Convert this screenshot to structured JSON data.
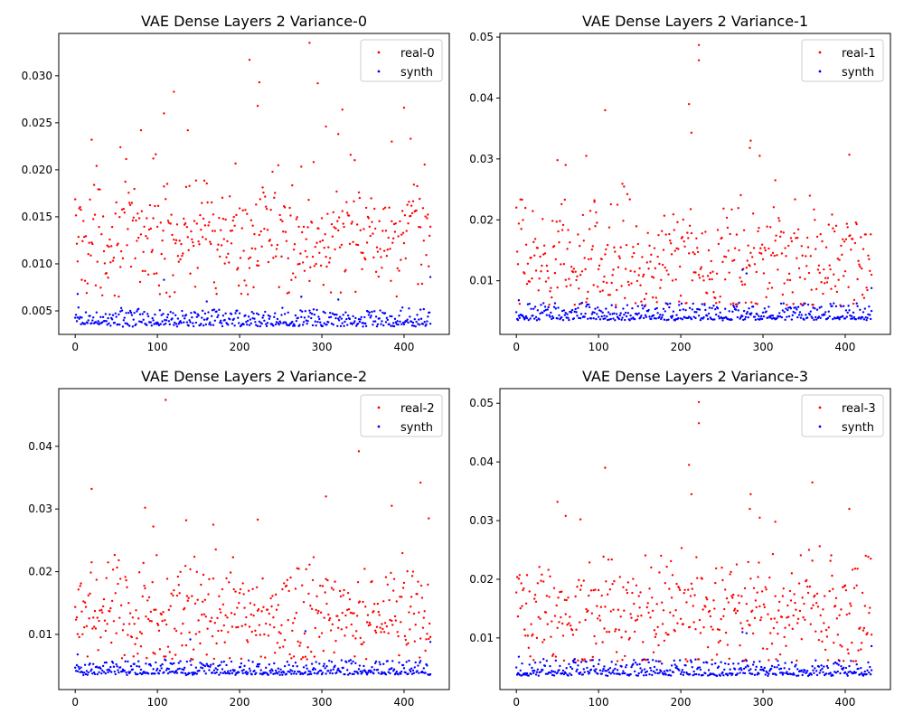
{
  "figure": {
    "background": "#ffffff"
  },
  "chart_data": [
    {
      "type": "scatter",
      "title": "VAE Dense Layers 2 Variance-0",
      "xlabel": "",
      "ylabel": "",
      "xlim": [
        -20,
        455
      ],
      "ylim": [
        0.0025,
        0.0345
      ],
      "xticks": [
        0,
        100,
        200,
        300,
        400
      ],
      "yticks": [
        0.005,
        0.01,
        0.015,
        0.02,
        0.025,
        0.03
      ],
      "ytick_labels": [
        "0.005",
        "0.010",
        "0.015",
        "0.020",
        "0.025",
        "0.030"
      ],
      "legend": {
        "position": "top-right",
        "entries": [
          "real-0",
          "synth"
        ]
      },
      "series": [
        {
          "name": "real-0",
          "color": "#ff0000",
          "n": 433,
          "base": 0.0128,
          "spread": 0.0032,
          "min": 0.0065,
          "outliers": [
            [
              20,
              0.0232
            ],
            [
              55,
              0.0224
            ],
            [
              80,
              0.0242
            ],
            [
              95,
              0.0212
            ],
            [
              108,
              0.026
            ],
            [
              120,
              0.0283
            ],
            [
              137,
              0.0242
            ],
            [
              212,
              0.0317
            ],
            [
              224,
              0.0293
            ],
            [
              222,
              0.0268
            ],
            [
              285,
              0.0335
            ],
            [
              295,
              0.0292
            ],
            [
              305,
              0.0246
            ],
            [
              320,
              0.0238
            ],
            [
              325,
              0.0264
            ],
            [
              385,
              0.023
            ],
            [
              400,
              0.0266
            ],
            [
              408,
              0.0233
            ]
          ]
        },
        {
          "name": "synth",
          "color": "#0000ff",
          "n": 433,
          "base": 0.0036,
          "spread": 0.0008,
          "min": 0.003,
          "outliers": [
            [
              3,
              0.0068
            ],
            [
              108,
              0.0083
            ],
            [
              160,
              0.006
            ],
            [
              275,
              0.0065
            ],
            [
              320,
              0.0062
            ],
            [
              432,
              0.0086
            ]
          ]
        }
      ]
    },
    {
      "type": "scatter",
      "title": "VAE Dense Layers 2 Variance-1",
      "xlabel": "",
      "ylabel": "",
      "xlim": [
        -20,
        455
      ],
      "ylim": [
        0.0012,
        0.0506
      ],
      "xticks": [
        0,
        100,
        200,
        300,
        400
      ],
      "yticks": [
        0.01,
        0.02,
        0.03,
        0.04,
        0.05
      ],
      "ytick_labels": [
        "0.01",
        "0.02",
        "0.03",
        "0.04",
        "0.05"
      ],
      "legend": {
        "position": "top-right",
        "entries": [
          "real-1",
          "synth"
        ]
      },
      "series": [
        {
          "name": "real-1",
          "color": "#ff0000",
          "n": 433,
          "base": 0.0135,
          "spread": 0.0048,
          "min": 0.006,
          "outliers": [
            [
              50,
              0.0298
            ],
            [
              60,
              0.029
            ],
            [
              85,
              0.0305
            ],
            [
              95,
              0.0232
            ],
            [
              108,
              0.038
            ],
            [
              210,
              0.039
            ],
            [
              213,
              0.0343
            ],
            [
              222,
              0.0487
            ],
            [
              222,
              0.0462
            ],
            [
              285,
              0.033
            ],
            [
              284,
              0.0318
            ],
            [
              296,
              0.0305
            ],
            [
              315,
              0.0265
            ],
            [
              405,
              0.0307
            ]
          ]
        },
        {
          "name": "synth",
          "color": "#0000ff",
          "n": 433,
          "base": 0.0038,
          "spread": 0.0012,
          "min": 0.0032,
          "outliers": [
            [
              3,
              0.0068
            ],
            [
              275,
              0.0118
            ],
            [
              280,
              0.0112
            ],
            [
              432,
              0.0088
            ]
          ]
        }
      ]
    },
    {
      "type": "scatter",
      "title": "VAE Dense Layers 2 Variance-2",
      "xlabel": "",
      "ylabel": "",
      "xlim": [
        -20,
        455
      ],
      "ylim": [
        0.0012,
        0.0492
      ],
      "xticks": [
        0,
        100,
        200,
        300,
        400
      ],
      "yticks": [
        0.01,
        0.02,
        0.03,
        0.04
      ],
      "ytick_labels": [
        "0.01",
        "0.02",
        "0.03",
        "0.04"
      ],
      "legend": {
        "position": "top-right",
        "entries": [
          "real-2",
          "synth"
        ]
      },
      "series": [
        {
          "name": "real-2",
          "color": "#ff0000",
          "n": 433,
          "base": 0.0132,
          "spread": 0.0042,
          "min": 0.006,
          "outliers": [
            [
              20,
              0.0332
            ],
            [
              85,
              0.0302
            ],
            [
              95,
              0.0272
            ],
            [
              110,
              0.0474
            ],
            [
              135,
              0.0282
            ],
            [
              168,
              0.0275
            ],
            [
              222,
              0.0283
            ],
            [
              305,
              0.032
            ],
            [
              345,
              0.0392
            ],
            [
              385,
              0.0305
            ],
            [
              420,
              0.0342
            ],
            [
              430,
              0.0285
            ]
          ]
        },
        {
          "name": "synth",
          "color": "#0000ff",
          "n": 433,
          "base": 0.0038,
          "spread": 0.001,
          "min": 0.0032,
          "outliers": [
            [
              3,
              0.0068
            ],
            [
              140,
              0.0092
            ],
            [
              280,
              0.0105
            ],
            [
              432,
              0.0088
            ]
          ]
        }
      ]
    },
    {
      "type": "scatter",
      "title": "VAE Dense Layers 2 Variance-3",
      "xlabel": "",
      "ylabel": "",
      "xlim": [
        -20,
        455
      ],
      "ylim": [
        0.0012,
        0.0525
      ],
      "xticks": [
        0,
        100,
        200,
        300,
        400
      ],
      "yticks": [
        0.01,
        0.02,
        0.03,
        0.04,
        0.05
      ],
      "ytick_labels": [
        "0.01",
        "0.02",
        "0.03",
        "0.04",
        "0.05"
      ],
      "legend": {
        "position": "top-right",
        "entries": [
          "real-3",
          "synth"
        ]
      },
      "series": [
        {
          "name": "real-3",
          "color": "#ff0000",
          "n": 433,
          "base": 0.014,
          "spread": 0.0048,
          "min": 0.006,
          "outliers": [
            [
              50,
              0.0332
            ],
            [
              60,
              0.0308
            ],
            [
              78,
              0.0302
            ],
            [
              108,
              0.039
            ],
            [
              210,
              0.0395
            ],
            [
              213,
              0.0345
            ],
            [
              222,
              0.0502
            ],
            [
              222,
              0.0466
            ],
            [
              285,
              0.0345
            ],
            [
              284,
              0.032
            ],
            [
              296,
              0.0305
            ],
            [
              315,
              0.0298
            ],
            [
              360,
              0.0365
            ],
            [
              405,
              0.032
            ]
          ]
        },
        {
          "name": "synth",
          "color": "#0000ff",
          "n": 433,
          "base": 0.0038,
          "spread": 0.0012,
          "min": 0.0032,
          "outliers": [
            [
              3,
              0.0068
            ],
            [
              275,
              0.011
            ],
            [
              280,
              0.0108
            ],
            [
              432,
              0.0086
            ]
          ]
        }
      ]
    }
  ]
}
